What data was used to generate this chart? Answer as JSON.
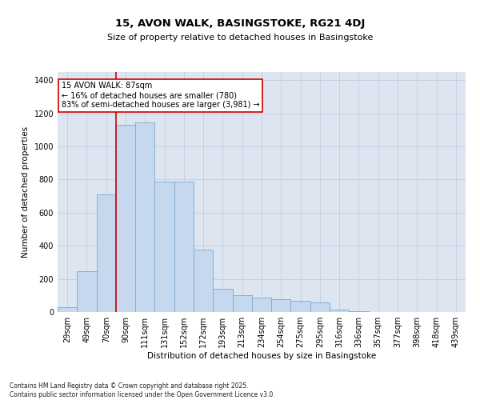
{
  "title": "15, AVON WALK, BASINGSTOKE, RG21 4DJ",
  "subtitle": "Size of property relative to detached houses in Basingstoke",
  "xlabel": "Distribution of detached houses by size in Basingstoke",
  "ylabel": "Number of detached properties",
  "footnote1": "Contains HM Land Registry data © Crown copyright and database right 2025.",
  "footnote2": "Contains public sector information licensed under the Open Government Licence v3.0.",
  "categories": [
    "29sqm",
    "49sqm",
    "70sqm",
    "90sqm",
    "111sqm",
    "131sqm",
    "152sqm",
    "172sqm",
    "193sqm",
    "213sqm",
    "234sqm",
    "254sqm",
    "275sqm",
    "295sqm",
    "316sqm",
    "336sqm",
    "357sqm",
    "377sqm",
    "398sqm",
    "418sqm",
    "439sqm"
  ],
  "values": [
    30,
    245,
    710,
    1130,
    1145,
    790,
    790,
    375,
    140,
    100,
    85,
    75,
    70,
    60,
    15,
    5,
    0,
    0,
    0,
    0,
    0
  ],
  "bar_color": "#c5d8ee",
  "bar_edge_color": "#7aaad0",
  "vline_color": "#cc0000",
  "vline_pos": 2.5,
  "annotation_text": "15 AVON WALK: 87sqm\n← 16% of detached houses are smaller (780)\n83% of semi-detached houses are larger (3,981) →",
  "annotation_box_color": "#cc0000",
  "annotation_box_fill": "#ffffff",
  "ylim": [
    0,
    1450
  ],
  "yticks": [
    0,
    200,
    400,
    600,
    800,
    1000,
    1200,
    1400
  ],
  "grid_color": "#c5cfe0",
  "bg_color": "#dde6f0",
  "title_fontsize": 9.5,
  "subtitle_fontsize": 8,
  "axis_label_fontsize": 7.5,
  "tick_fontsize": 7,
  "annot_fontsize": 7,
  "footnote_fontsize": 5.5
}
